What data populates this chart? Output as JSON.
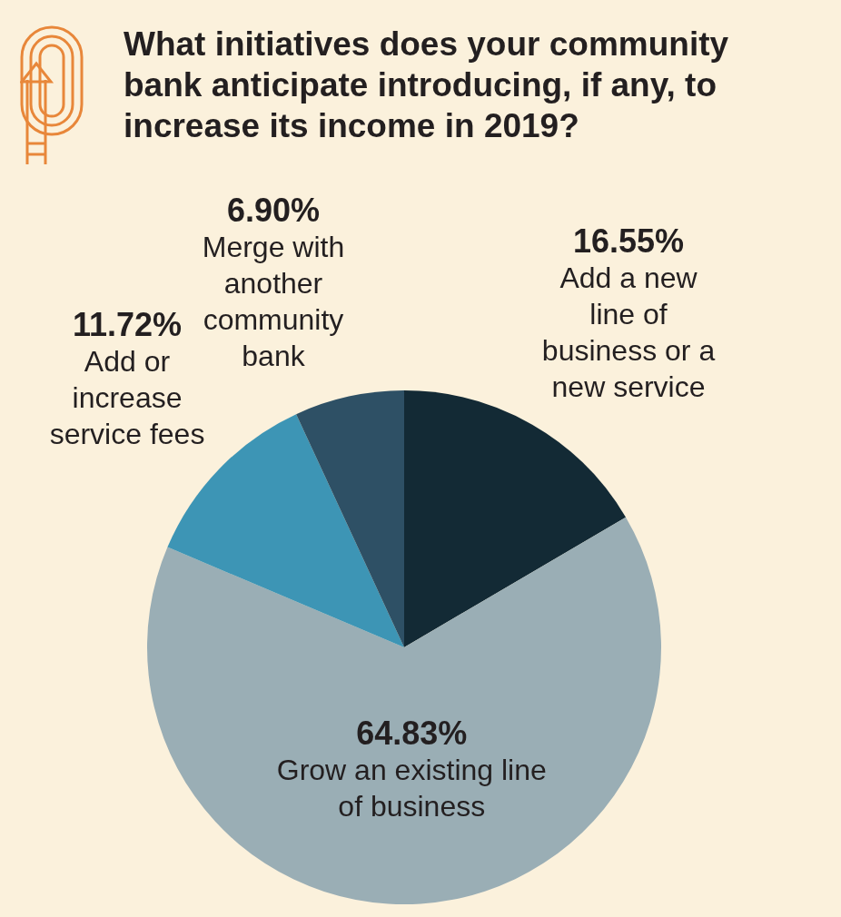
{
  "chart_data": {
    "type": "pie",
    "title": "What initiatives does your community bank anticipate introducing, if any, to increase its income in 2019?",
    "categories": [
      "Add a new line of business or a new service",
      "Grow an existing line of business",
      "Add or increase service fees",
      "Merge with another community bank"
    ],
    "values": [
      16.55,
      64.83,
      11.72,
      6.9
    ],
    "value_labels": [
      "16.55%",
      "64.83%",
      "11.72%",
      "6.90%"
    ],
    "colors": [
      "#132a35",
      "#9aaeb5",
      "#3d95b5",
      "#2e5065"
    ],
    "legend": false
  }
}
